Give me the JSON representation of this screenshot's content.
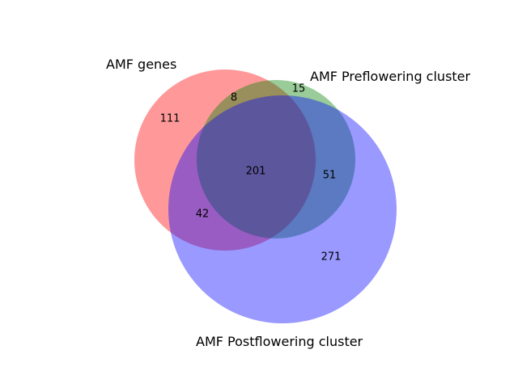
{
  "sets": [
    {
      "key": "genes",
      "label": "AMF genes",
      "color": "#ff0000"
    },
    {
      "key": "pre",
      "label": "AMF Preflowering cluster",
      "color": "#008000"
    },
    {
      "key": "post",
      "label": "AMF Postflowering cluster",
      "color": "#0000ff"
    }
  ],
  "regions": {
    "genes_only": "111",
    "pre_only": "15",
    "post_only": "271",
    "genes_pre": "8",
    "genes_post": "42",
    "pre_post": "51",
    "all_three": "201"
  }
}
